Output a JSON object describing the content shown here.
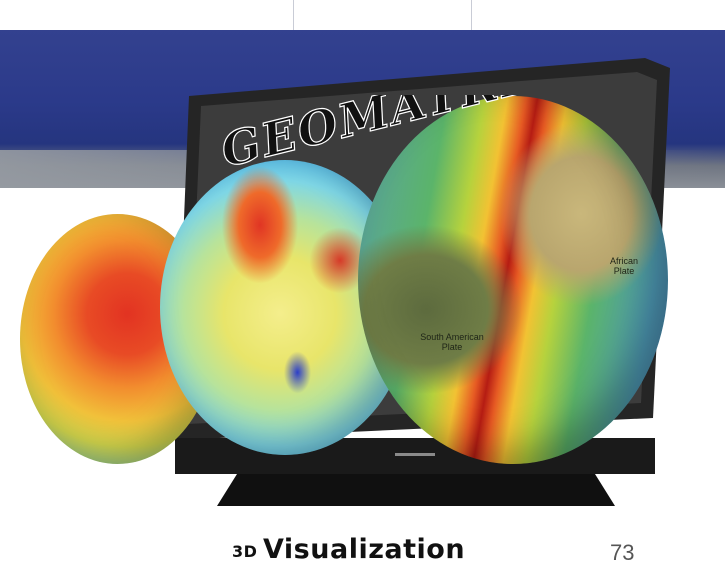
{
  "brand": {
    "logo_text": "GEOMATRIX",
    "colors": {
      "band_blue": "#2b3a8a",
      "logo_text": "#111111"
    }
  },
  "caption": {
    "prefix": "3D",
    "main": "Visualization"
  },
  "globe_labels": {
    "south_american_plate": "South American Plate",
    "african_plate": "African Plate"
  },
  "page_number": "73"
}
